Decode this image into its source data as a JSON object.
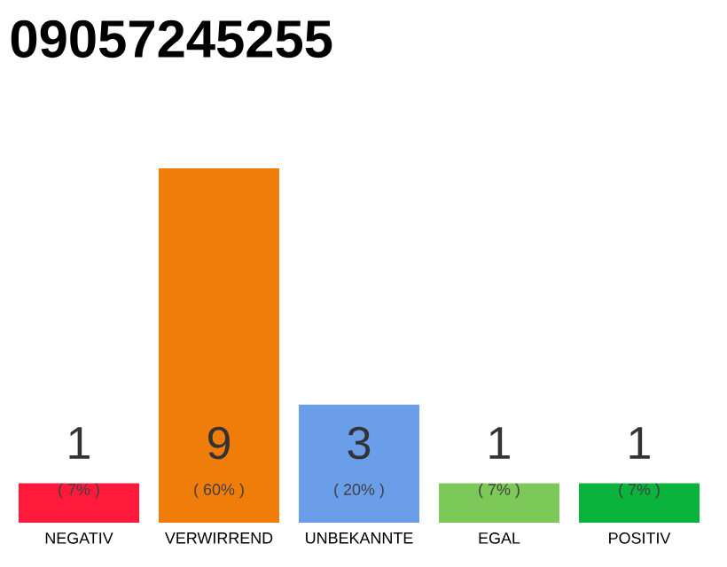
{
  "chart_data": {
    "type": "bar",
    "title": "09057245255",
    "categories": [
      "NEGATIV",
      "VERWIRREND",
      "UNBEKANNTE",
      "EGAL",
      "POSITIV"
    ],
    "values": [
      1,
      9,
      3,
      1,
      1
    ],
    "colors": [
      "#ff1a3c",
      "#f07d0a",
      "#6a9ee8",
      "#7cc95a",
      "#0ab33c"
    ],
    "data_labels": true,
    "annotations": [
      "( 7% )",
      "( 60% )",
      "( 20% )",
      "( 7% )",
      "( 7% )"
    ]
  }
}
